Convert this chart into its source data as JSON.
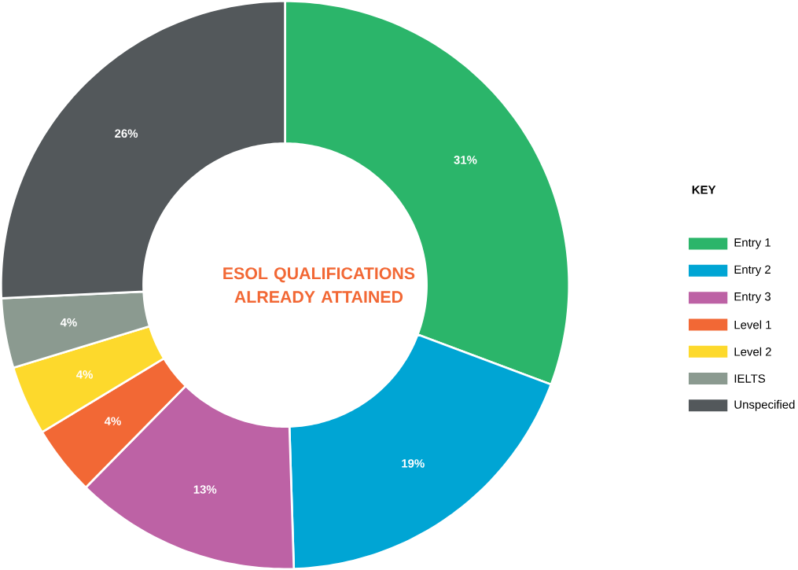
{
  "chart_data": {
    "type": "donut",
    "title": "ESOL QUALIFICATIONS ALREADY ATTAINED",
    "legend_title": "KEY",
    "legend": "right",
    "categories": [
      "Entry 1",
      "Entry 2",
      "Entry 3",
      "Level 1",
      "Level 2",
      "IELTS",
      "Unspecified"
    ],
    "values": [
      31,
      19,
      13,
      4,
      4,
      4,
      26
    ],
    "value_labels": [
      "31%",
      "19%",
      "13%",
      "4%",
      "4%",
      "4%",
      "26%"
    ],
    "colors": [
      "#2bb56a",
      "#00a5d4",
      "#bd62a5",
      "#f26835",
      "#fdd92c",
      "#8b9a90",
      "#53585b"
    ]
  }
}
